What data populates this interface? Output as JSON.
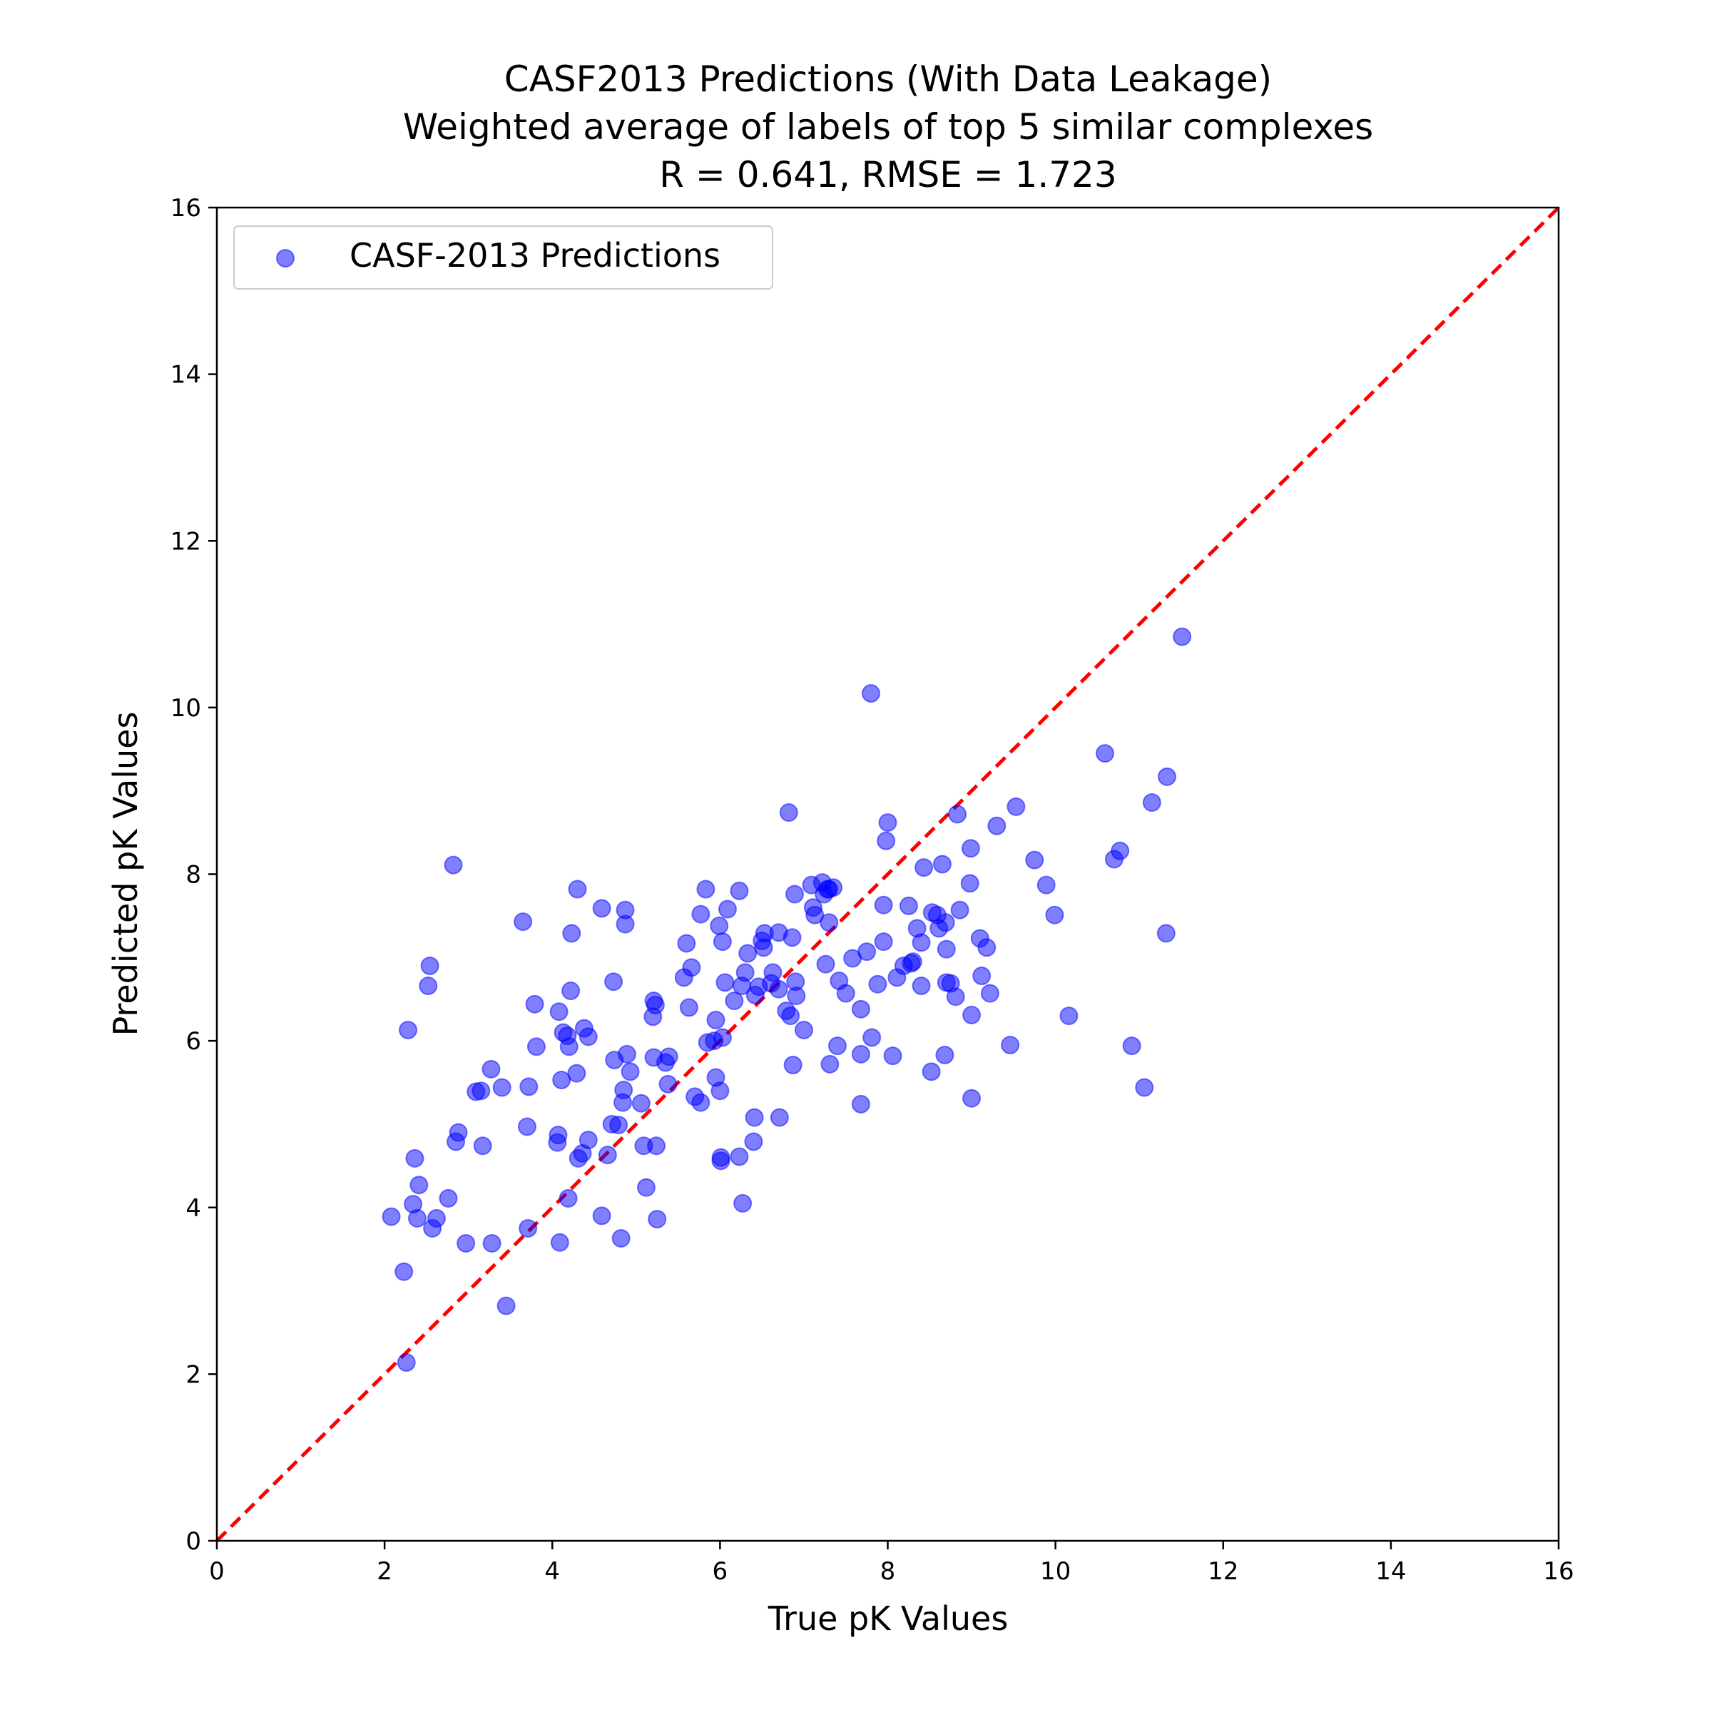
{
  "chart_data": {
    "type": "scatter",
    "title": [
      "CASF2013 Predictions (With Data Leakage)",
      "Weighted average of labels of top 5 similar complexes",
      "R = 0.641, RMSE = 1.723"
    ],
    "xlabel": "True pK Values",
    "ylabel": "Predicted pK Values",
    "xlim": [
      0,
      16
    ],
    "ylim": [
      0,
      16
    ],
    "xticks": [
      "0",
      "2",
      "4",
      "6",
      "8",
      "10",
      "12",
      "14",
      "16"
    ],
    "yticks": [
      "0",
      "2",
      "4",
      "6",
      "8",
      "10",
      "12",
      "14",
      "16"
    ],
    "grid": false,
    "legend_position": "upper-left",
    "reference_line": {
      "from": [
        0,
        0
      ],
      "to": [
        16,
        16
      ],
      "style": "dashed",
      "color": "#ff0000"
    },
    "series": [
      {
        "name": "CASF-2013 Predictions",
        "color": "#0000ff",
        "alpha": 0.5,
        "points": [
          [
            2.08,
            3.89
          ],
          [
            2.23,
            3.23
          ],
          [
            2.26,
            2.14
          ],
          [
            2.28,
            6.13
          ],
          [
            2.34,
            4.04
          ],
          [
            2.36,
            4.59
          ],
          [
            2.39,
            3.87
          ],
          [
            2.41,
            4.27
          ],
          [
            2.52,
            6.66
          ],
          [
            2.54,
            6.9
          ],
          [
            2.57,
            3.75
          ],
          [
            2.62,
            3.87
          ],
          [
            2.76,
            4.11
          ],
          [
            2.82,
            8.11
          ],
          [
            2.85,
            4.79
          ],
          [
            2.88,
            4.9
          ],
          [
            2.97,
            3.57
          ],
          [
            3.09,
            5.39
          ],
          [
            3.15,
            5.4
          ],
          [
            3.17,
            4.74
          ],
          [
            3.27,
            5.66
          ],
          [
            3.28,
            3.57
          ],
          [
            3.4,
            5.44
          ],
          [
            3.45,
            2.82
          ],
          [
            3.65,
            7.43
          ],
          [
            3.7,
            4.97
          ],
          [
            3.71,
            3.75
          ],
          [
            3.72,
            5.45
          ],
          [
            3.79,
            6.44
          ],
          [
            3.81,
            5.93
          ],
          [
            4.06,
            4.78
          ],
          [
            4.07,
            4.87
          ],
          [
            4.08,
            6.35
          ],
          [
            4.09,
            3.58
          ],
          [
            4.11,
            5.53
          ],
          [
            4.13,
            6.1
          ],
          [
            4.18,
            6.06
          ],
          [
            4.19,
            4.11
          ],
          [
            4.2,
            5.93
          ],
          [
            4.22,
            6.6
          ],
          [
            4.23,
            7.29
          ],
          [
            4.3,
            7.82
          ],
          [
            4.29,
            5.61
          ],
          [
            4.31,
            4.59
          ],
          [
            4.36,
            4.65
          ],
          [
            4.38,
            6.15
          ],
          [
            4.43,
            6.05
          ],
          [
            4.43,
            4.81
          ],
          [
            4.59,
            7.59
          ],
          [
            4.59,
            3.9
          ],
          [
            4.66,
            4.63
          ],
          [
            4.71,
            5.0
          ],
          [
            4.73,
            6.71
          ],
          [
            4.74,
            5.77
          ],
          [
            4.79,
            4.99
          ],
          [
            4.82,
            3.63
          ],
          [
            4.84,
            5.26
          ],
          [
            4.85,
            5.41
          ],
          [
            4.87,
            7.4
          ],
          [
            4.87,
            7.57
          ],
          [
            4.89,
            5.84
          ],
          [
            4.93,
            5.63
          ],
          [
            5.06,
            5.25
          ],
          [
            5.09,
            4.74
          ],
          [
            5.12,
            4.24
          ],
          [
            5.2,
            6.29
          ],
          [
            5.21,
            6.48
          ],
          [
            5.21,
            5.8
          ],
          [
            5.23,
            6.43
          ],
          [
            5.24,
            4.74
          ],
          [
            5.25,
            3.86
          ],
          [
            5.35,
            5.74
          ],
          [
            5.38,
            5.48
          ],
          [
            5.39,
            5.81
          ],
          [
            5.57,
            6.76
          ],
          [
            5.6,
            7.17
          ],
          [
            5.63,
            6.4
          ],
          [
            5.66,
            6.88
          ],
          [
            5.7,
            5.33
          ],
          [
            5.77,
            5.26
          ],
          [
            5.77,
            7.52
          ],
          [
            5.83,
            7.82
          ],
          [
            5.85,
            5.98
          ],
          [
            5.93,
            6.0
          ],
          [
            5.95,
            5.56
          ],
          [
            5.95,
            6.25
          ],
          [
            5.99,
            7.38
          ],
          [
            6.0,
            5.4
          ],
          [
            6.01,
            4.56
          ],
          [
            6.01,
            4.6
          ],
          [
            6.03,
            6.04
          ],
          [
            6.03,
            7.19
          ],
          [
            6.06,
            6.7
          ],
          [
            6.09,
            7.58
          ],
          [
            6.17,
            6.48
          ],
          [
            6.23,
            4.61
          ],
          [
            6.23,
            7.8
          ],
          [
            6.26,
            6.66
          ],
          [
            6.27,
            4.05
          ],
          [
            6.3,
            6.82
          ],
          [
            6.33,
            7.05
          ],
          [
            6.4,
            4.79
          ],
          [
            6.41,
            5.08
          ],
          [
            6.42,
            6.55
          ],
          [
            6.46,
            6.65
          ],
          [
            6.5,
            7.2
          ],
          [
            6.52,
            7.12
          ],
          [
            6.53,
            7.29
          ],
          [
            6.61,
            6.69
          ],
          [
            6.63,
            6.82
          ],
          [
            6.7,
            6.62
          ],
          [
            6.7,
            7.3
          ],
          [
            6.71,
            5.08
          ],
          [
            6.79,
            6.36
          ],
          [
            6.82,
            8.74
          ],
          [
            6.84,
            6.3
          ],
          [
            6.86,
            7.24
          ],
          [
            6.87,
            5.71
          ],
          [
            6.89,
            7.76
          ],
          [
            6.9,
            6.71
          ],
          [
            6.91,
            6.54
          ],
          [
            7.0,
            6.13
          ],
          [
            7.09,
            7.87
          ],
          [
            7.11,
            7.6
          ],
          [
            7.13,
            7.51
          ],
          [
            7.22,
            7.9
          ],
          [
            7.24,
            7.76
          ],
          [
            7.26,
            6.92
          ],
          [
            7.28,
            7.82
          ],
          [
            7.3,
            7.42
          ],
          [
            7.3,
            7.82
          ],
          [
            7.31,
            5.72
          ],
          [
            7.35,
            7.84
          ],
          [
            7.4,
            5.94
          ],
          [
            7.42,
            6.72
          ],
          [
            7.5,
            6.57
          ],
          [
            7.58,
            6.99
          ],
          [
            7.68,
            6.38
          ],
          [
            7.68,
            5.84
          ],
          [
            7.68,
            5.24
          ],
          [
            7.75,
            7.07
          ],
          [
            7.8,
            10.17
          ],
          [
            7.81,
            6.04
          ],
          [
            7.88,
            6.68
          ],
          [
            7.95,
            7.63
          ],
          [
            7.95,
            7.19
          ],
          [
            7.98,
            8.4
          ],
          [
            8.0,
            8.62
          ],
          [
            8.06,
            5.82
          ],
          [
            8.11,
            6.76
          ],
          [
            8.19,
            6.9
          ],
          [
            8.25,
            7.62
          ],
          [
            8.28,
            6.93
          ],
          [
            8.3,
            6.95
          ],
          [
            8.35,
            7.35
          ],
          [
            8.4,
            7.18
          ],
          [
            8.4,
            6.66
          ],
          [
            8.43,
            8.08
          ],
          [
            8.52,
            5.63
          ],
          [
            8.53,
            7.54
          ],
          [
            8.59,
            7.51
          ],
          [
            8.61,
            7.35
          ],
          [
            8.65,
            8.12
          ],
          [
            8.68,
            5.83
          ],
          [
            8.69,
            7.42
          ],
          [
            8.7,
            7.1
          ],
          [
            8.7,
            6.7
          ],
          [
            8.75,
            6.69
          ],
          [
            8.81,
            6.53
          ],
          [
            8.83,
            8.72
          ],
          [
            8.86,
            7.57
          ],
          [
            8.98,
            7.89
          ],
          [
            8.99,
            8.31
          ],
          [
            9.0,
            6.31
          ],
          [
            9.0,
            5.31
          ],
          [
            9.1,
            7.23
          ],
          [
            9.12,
            6.78
          ],
          [
            9.18,
            7.12
          ],
          [
            9.22,
            6.57
          ],
          [
            9.3,
            8.58
          ],
          [
            9.46,
            5.95
          ],
          [
            9.53,
            8.81
          ],
          [
            9.75,
            8.17
          ],
          [
            9.89,
            7.87
          ],
          [
            9.99,
            7.51
          ],
          [
            10.16,
            6.3
          ],
          [
            10.59,
            9.45
          ],
          [
            10.7,
            8.18
          ],
          [
            10.77,
            8.28
          ],
          [
            10.91,
            5.94
          ],
          [
            11.06,
            5.44
          ],
          [
            11.15,
            8.86
          ],
          [
            11.32,
            7.29
          ],
          [
            11.33,
            9.17
          ],
          [
            11.51,
            10.85
          ]
        ]
      }
    ]
  }
}
